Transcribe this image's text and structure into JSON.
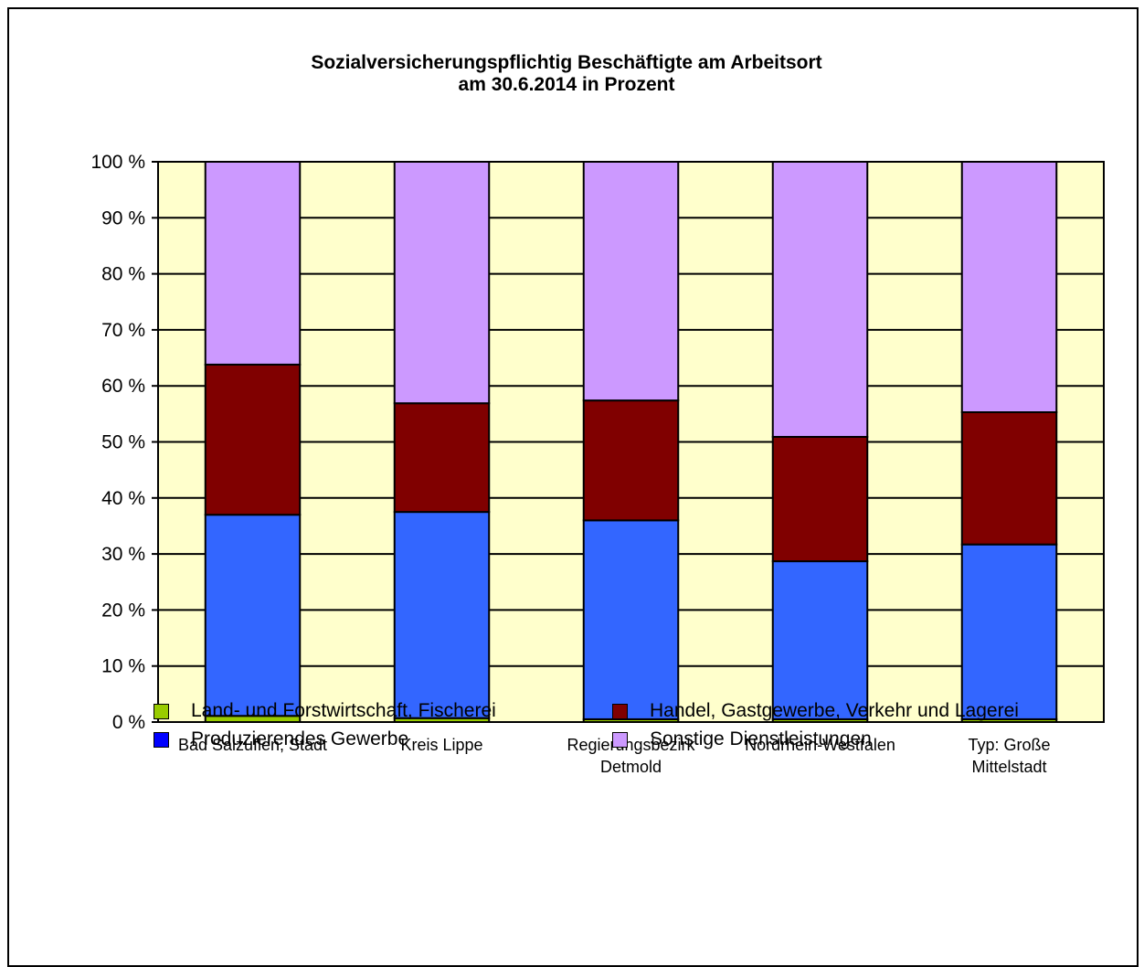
{
  "chart_data": {
    "type": "bar",
    "stacked": true,
    "title": "Sozialversicherungspflichtig Beschäftigte am Arbeitsort",
    "subtitle": "am 30.6.2014 in Prozent",
    "categories": [
      [
        "Bad Salzuflen, Stadt"
      ],
      [
        "Kreis Lippe"
      ],
      [
        "Regierungsbezirk",
        "Detmold"
      ],
      [
        "Nordrhein-Westfalen"
      ],
      [
        "Typ: Große",
        "Mittelstadt"
      ]
    ],
    "series": [
      {
        "name": "Land- und Forstwirtschaft, Fischerei",
        "color": "#99cc00",
        "legend_color": "#99cc00",
        "values": [
          1.1,
          0.7,
          0.5,
          0.5,
          0.5
        ]
      },
      {
        "name": "Produzierendes Gewerbe",
        "color": "#3366ff",
        "legend_color": "#0000ff",
        "values": [
          35.9,
          36.8,
          35.5,
          28.2,
          31.2
        ]
      },
      {
        "name": "Handel, Gastgewerbe, Verkehr und Lagerei",
        "color": "#800000",
        "legend_color": "#800000",
        "values": [
          26.8,
          19.4,
          21.4,
          22.2,
          23.6
        ]
      },
      {
        "name": "Sonstige Dienstleistungen",
        "color": "#cc99ff",
        "legend_color": "#cc99ff",
        "values": [
          36.2,
          43.1,
          42.6,
          49.1,
          44.7
        ]
      }
    ],
    "ylim": [
      0,
      100
    ],
    "yticks": [
      0,
      10,
      20,
      30,
      40,
      50,
      60,
      70,
      80,
      90,
      100
    ],
    "ytick_labels": [
      "0 %",
      "10 %",
      "20 %",
      "30 %",
      "40 %",
      "50 %",
      "60 %",
      "70 %",
      "80 %",
      "90 %",
      "100 %"
    ],
    "xlabel": "",
    "ylabel": "",
    "grid": true,
    "plot_background": "#ffffcc",
    "legend_position": "bottom"
  }
}
